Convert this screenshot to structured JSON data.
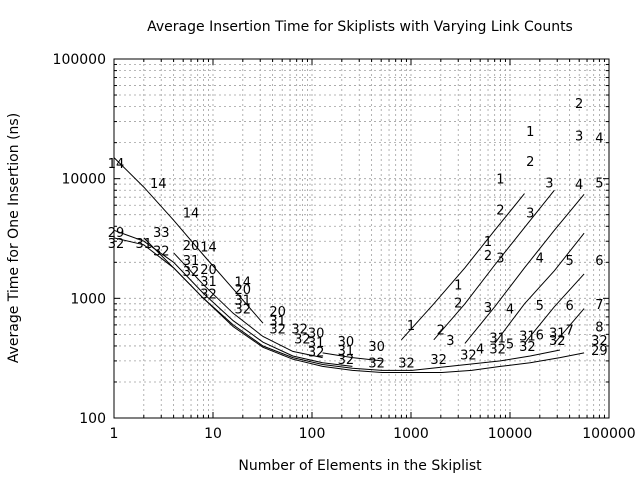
{
  "chart_data": {
    "type": "line",
    "title": "Average Insertion Time for Skiplists with Varying Link Counts",
    "xlabel": "Number of Elements in the Skiplist",
    "ylabel": "Average Time for One Insertion (ns)",
    "x_scale": "log",
    "y_scale": "log",
    "xlim": [
      1,
      100000
    ],
    "ylim": [
      100,
      100000
    ],
    "grid": true,
    "x_ticks": [
      1,
      10,
      100,
      1000,
      10000,
      100000
    ],
    "x_tick_labels": [
      "1",
      "10",
      "100",
      "1000",
      "10000",
      "100000"
    ],
    "y_ticks": [
      100,
      1000,
      10000,
      100000
    ],
    "y_tick_labels": [
      "100",
      "1000",
      "10000",
      "100000"
    ],
    "series": [
      {
        "name": "1",
        "points": [
          [
            800,
            450
          ],
          [
            1700,
            900
          ],
          [
            3500,
            1800
          ],
          [
            7000,
            3700
          ],
          [
            14000,
            7500
          ]
        ]
      },
      {
        "name": "2",
        "points": [
          [
            1700,
            450
          ],
          [
            3500,
            900
          ],
          [
            7000,
            1900
          ],
          [
            14000,
            3900
          ],
          [
            28000,
            8000
          ]
        ]
      },
      {
        "name": "3",
        "points": [
          [
            3500,
            420
          ],
          [
            7000,
            850
          ],
          [
            14000,
            1800
          ],
          [
            28000,
            3700
          ],
          [
            56000,
            7400
          ]
        ]
      },
      {
        "name": "4",
        "points": [
          [
            7000,
            420
          ],
          [
            14000,
            900
          ],
          [
            28000,
            1700
          ],
          [
            56000,
            3500
          ]
        ]
      },
      {
        "name": "5",
        "points": [
          [
            14000,
            420
          ],
          [
            28000,
            850
          ],
          [
            56000,
            1600
          ]
        ]
      },
      {
        "name": "6",
        "points": [
          [
            28000,
            420
          ],
          [
            56000,
            820
          ]
        ]
      },
      {
        "name": "14",
        "points": [
          [
            1,
            15000
          ],
          [
            2,
            8500
          ],
          [
            4,
            4500
          ],
          [
            8,
            2300
          ],
          [
            16,
            1200
          ],
          [
            32,
            620
          ]
        ]
      },
      {
        "name": "20",
        "points": [
          [
            4,
            2400
          ],
          [
            8,
            1300
          ],
          [
            16,
            750
          ],
          [
            32,
            480
          ],
          [
            64,
            360
          ],
          [
            128,
            320
          ]
        ]
      },
      {
        "name": "29",
        "points": [
          [
            1,
            3700
          ],
          [
            2,
            3000
          ],
          [
            4,
            2000
          ],
          [
            8,
            1100
          ],
          [
            16,
            650
          ],
          [
            32,
            430
          ],
          [
            64,
            330
          ],
          [
            128,
            290
          ],
          [
            256,
            270
          ]
        ]
      },
      {
        "name": "30",
        "points": [
          [
            128,
            350
          ],
          [
            256,
            320
          ],
          [
            512,
            300
          ]
        ]
      },
      {
        "name": "31",
        "points": [
          [
            2,
            3200
          ],
          [
            4,
            1800
          ],
          [
            8,
            1000
          ],
          [
            16,
            600
          ],
          [
            32,
            400
          ],
          [
            64,
            320
          ],
          [
            128,
            280
          ],
          [
            256,
            260
          ],
          [
            512,
            250
          ],
          [
            1024,
            250
          ],
          [
            8000,
            300
          ],
          [
            16000,
            330
          ],
          [
            32000,
            370
          ]
        ]
      },
      {
        "name": "32",
        "points": [
          [
            1,
            3200
          ],
          [
            2,
            2800
          ],
          [
            4,
            1800
          ],
          [
            8,
            1000
          ],
          [
            16,
            580
          ],
          [
            32,
            390
          ],
          [
            64,
            310
          ],
          [
            128,
            270
          ],
          [
            256,
            250
          ],
          [
            512,
            240
          ],
          [
            1024,
            240
          ],
          [
            2048,
            240
          ],
          [
            4096,
            250
          ],
          [
            8000,
            270
          ],
          [
            16000,
            290
          ],
          [
            32000,
            320
          ],
          [
            56000,
            350
          ]
        ]
      }
    ],
    "point_labels": [
      {
        "text": "2",
        "x": 50000,
        "y": 43000
      },
      {
        "text": "1",
        "x": 16000,
        "y": 25000
      },
      {
        "text": "3",
        "x": 50000,
        "y": 23000
      },
      {
        "text": "4",
        "x": 80000,
        "y": 22000
      },
      {
        "text": "2",
        "x": 16000,
        "y": 14000
      },
      {
        "text": "3",
        "x": 25000,
        "y": 9300
      },
      {
        "text": "4",
        "x": 50000,
        "y": 9000
      },
      {
        "text": "5",
        "x": 80000,
        "y": 9300
      },
      {
        "text": "1",
        "x": 8000,
        "y": 10000
      },
      {
        "text": "2",
        "x": 8000,
        "y": 5500
      },
      {
        "text": "3",
        "x": 16000,
        "y": 5200
      },
      {
        "text": "1",
        "x": 6000,
        "y": 3000
      },
      {
        "text": "2",
        "x": 6000,
        "y": 2300
      },
      {
        "text": "3",
        "x": 8000,
        "y": 2200
      },
      {
        "text": "4",
        "x": 20000,
        "y": 2200
      },
      {
        "text": "5",
        "x": 40000,
        "y": 2100
      },
      {
        "text": "6",
        "x": 80000,
        "y": 2100
      },
      {
        "text": "1",
        "x": 3000,
        "y": 1300
      },
      {
        "text": "2",
        "x": 3000,
        "y": 920
      },
      {
        "text": "3",
        "x": 6000,
        "y": 850
      },
      {
        "text": "4",
        "x": 10000,
        "y": 820
      },
      {
        "text": "5",
        "x": 20000,
        "y": 880
      },
      {
        "text": "6",
        "x": 40000,
        "y": 880
      },
      {
        "text": "7",
        "x": 80000,
        "y": 900
      },
      {
        "text": "1",
        "x": 1000,
        "y": 600
      },
      {
        "text": "2",
        "x": 2000,
        "y": 550
      },
      {
        "text": "3",
        "x": 2500,
        "y": 450
      },
      {
        "text": "4",
        "x": 5000,
        "y": 380
      },
      {
        "text": "5",
        "x": 10000,
        "y": 420
      },
      {
        "text": "6",
        "x": 20000,
        "y": 500
      },
      {
        "text": "7",
        "x": 40000,
        "y": 550
      },
      {
        "text": "8",
        "x": 80000,
        "y": 580
      },
      {
        "text": "14",
        "x": 1,
        "y": 13500
      },
      {
        "text": "14",
        "x": 2.8,
        "y": 9200
      },
      {
        "text": "14",
        "x": 6,
        "y": 5200
      },
      {
        "text": "14",
        "x": 9,
        "y": 2700
      },
      {
        "text": "14",
        "x": 20,
        "y": 1380
      },
      {
        "text": "29",
        "x": 1,
        "y": 3600
      },
      {
        "text": "33",
        "x": 3,
        "y": 3600
      },
      {
        "text": "32",
        "x": 1,
        "y": 2900
      },
      {
        "text": "31",
        "x": 2,
        "y": 2900
      },
      {
        "text": "32",
        "x": 3,
        "y": 2500
      },
      {
        "text": "20",
        "x": 6,
        "y": 2800
      },
      {
        "text": "31",
        "x": 6,
        "y": 2100
      },
      {
        "text": "32",
        "x": 6,
        "y": 1700
      },
      {
        "text": "20",
        "x": 9,
        "y": 1750
      },
      {
        "text": "31",
        "x": 9,
        "y": 1400
      },
      {
        "text": "32",
        "x": 9,
        "y": 1100
      },
      {
        "text": "20",
        "x": 20,
        "y": 1200
      },
      {
        "text": "31",
        "x": 20,
        "y": 980
      },
      {
        "text": "32",
        "x": 20,
        "y": 820
      },
      {
        "text": "20",
        "x": 45,
        "y": 780
      },
      {
        "text": "31",
        "x": 45,
        "y": 650
      },
      {
        "text": "32",
        "x": 45,
        "y": 560
      },
      {
        "text": "32",
        "x": 75,
        "y": 560
      },
      {
        "text": "32",
        "x": 80,
        "y": 460
      },
      {
        "text": "30",
        "x": 110,
        "y": 520
      },
      {
        "text": "31",
        "x": 110,
        "y": 430
      },
      {
        "text": "32",
        "x": 110,
        "y": 360
      },
      {
        "text": "30",
        "x": 220,
        "y": 440
      },
      {
        "text": "31",
        "x": 220,
        "y": 370
      },
      {
        "text": "32",
        "x": 220,
        "y": 310
      },
      {
        "text": "30",
        "x": 450,
        "y": 400
      },
      {
        "text": "32",
        "x": 450,
        "y": 290
      },
      {
        "text": "32",
        "x": 900,
        "y": 290
      },
      {
        "text": "32",
        "x": 1900,
        "y": 310
      },
      {
        "text": "32",
        "x": 3800,
        "y": 340
      },
      {
        "text": "31",
        "x": 7500,
        "y": 470
      },
      {
        "text": "32",
        "x": 7500,
        "y": 380
      },
      {
        "text": "31",
        "x": 15000,
        "y": 490
      },
      {
        "text": "32",
        "x": 15000,
        "y": 400
      },
      {
        "text": "31",
        "x": 30000,
        "y": 520
      },
      {
        "text": "32",
        "x": 30000,
        "y": 450
      },
      {
        "text": "32",
        "x": 80000,
        "y": 450
      },
      {
        "text": "29",
        "x": 80000,
        "y": 370
      }
    ]
  }
}
